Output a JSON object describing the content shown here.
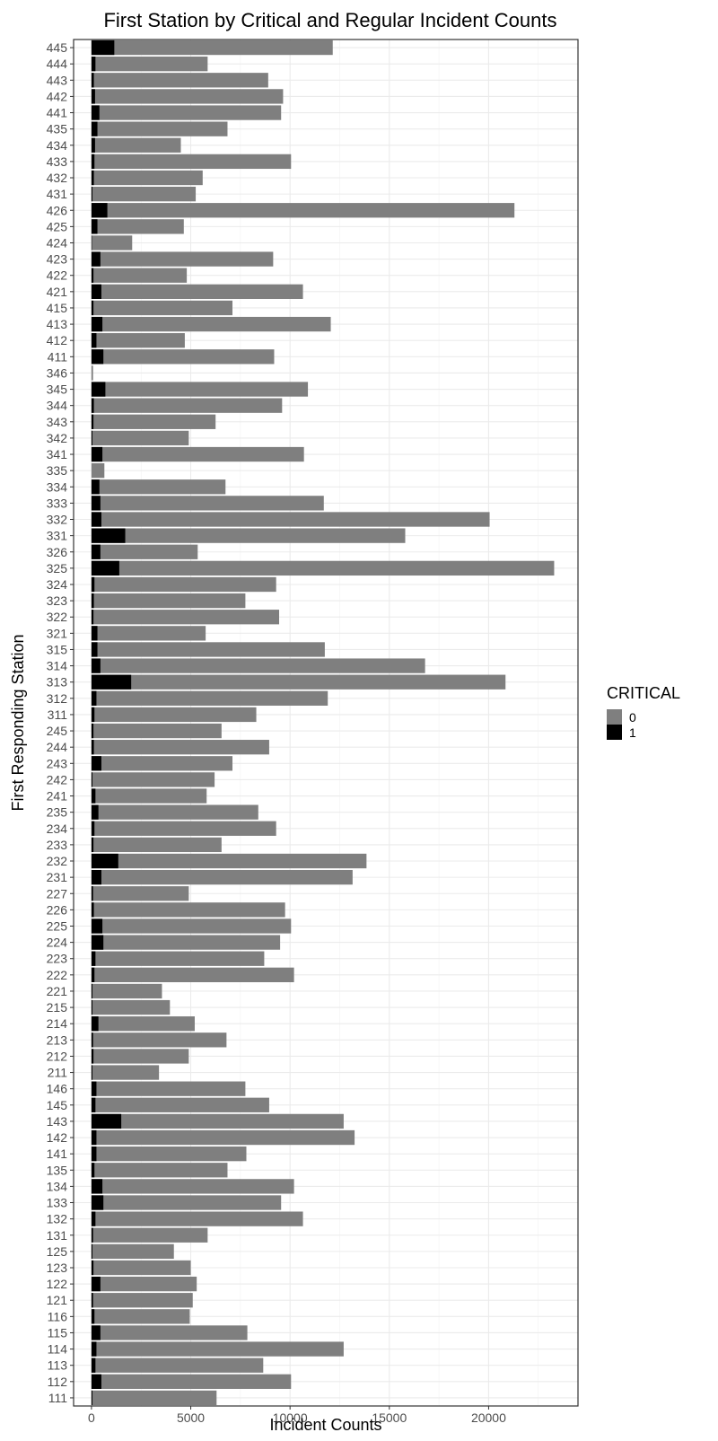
{
  "chart_data": {
    "type": "bar",
    "orientation": "horizontal",
    "stacked": true,
    "title": "First Station by Critical and Regular Incident Counts",
    "xlabel": "Incident Counts",
    "ylabel": "First Responding Station",
    "xlim": [
      -900,
      24500
    ],
    "xticks": [
      0,
      5000,
      10000,
      15000,
      20000
    ],
    "xtick_labels": [
      "0",
      "5000",
      "10000",
      "15000",
      "20000"
    ],
    "grid": true,
    "legend_title": "CRITICAL",
    "legend_position": "right",
    "series": [
      {
        "key": "1",
        "label": "1",
        "color": "#000000"
      },
      {
        "key": "0",
        "label": "0",
        "color": "#7f7f7f"
      }
    ],
    "rows": [
      {
        "station": "445",
        "critical": 1150,
        "total": 12150
      },
      {
        "station": "444",
        "critical": 200,
        "total": 5850
      },
      {
        "station": "443",
        "critical": 120,
        "total": 8900
      },
      {
        "station": "442",
        "critical": 180,
        "total": 9650
      },
      {
        "station": "441",
        "critical": 400,
        "total": 9550
      },
      {
        "station": "435",
        "critical": 300,
        "total": 6850
      },
      {
        "station": "434",
        "critical": 180,
        "total": 4500
      },
      {
        "station": "433",
        "critical": 150,
        "total": 10050
      },
      {
        "station": "432",
        "critical": 120,
        "total": 5600
      },
      {
        "station": "431",
        "critical": 50,
        "total": 5250
      },
      {
        "station": "426",
        "critical": 800,
        "total": 21300
      },
      {
        "station": "425",
        "critical": 300,
        "total": 4650
      },
      {
        "station": "424",
        "critical": 20,
        "total": 2050
      },
      {
        "station": "423",
        "critical": 450,
        "total": 9150
      },
      {
        "station": "422",
        "critical": 100,
        "total": 4800
      },
      {
        "station": "421",
        "critical": 500,
        "total": 10650
      },
      {
        "station": "415",
        "critical": 100,
        "total": 7100
      },
      {
        "station": "413",
        "critical": 550,
        "total": 12050
      },
      {
        "station": "412",
        "critical": 250,
        "total": 4700
      },
      {
        "station": "411",
        "critical": 600,
        "total": 9200
      },
      {
        "station": "346",
        "critical": 0,
        "total": 80
      },
      {
        "station": "345",
        "critical": 700,
        "total": 10900
      },
      {
        "station": "344",
        "critical": 120,
        "total": 9600
      },
      {
        "station": "343",
        "critical": 100,
        "total": 6250
      },
      {
        "station": "342",
        "critical": 50,
        "total": 4900
      },
      {
        "station": "341",
        "critical": 550,
        "total": 10700
      },
      {
        "station": "335",
        "critical": 0,
        "total": 650
      },
      {
        "station": "334",
        "critical": 400,
        "total": 6750
      },
      {
        "station": "333",
        "critical": 450,
        "total": 11700
      },
      {
        "station": "332",
        "critical": 500,
        "total": 20050
      },
      {
        "station": "331",
        "critical": 1700,
        "total": 15800
      },
      {
        "station": "326",
        "critical": 450,
        "total": 5350
      },
      {
        "station": "325",
        "critical": 1400,
        "total": 23300
      },
      {
        "station": "324",
        "critical": 150,
        "total": 9300
      },
      {
        "station": "323",
        "critical": 120,
        "total": 7750
      },
      {
        "station": "322",
        "critical": 100,
        "total": 9450
      },
      {
        "station": "321",
        "critical": 300,
        "total": 5750
      },
      {
        "station": "315",
        "critical": 300,
        "total": 11750
      },
      {
        "station": "314",
        "critical": 450,
        "total": 16800
      },
      {
        "station": "313",
        "critical": 2000,
        "total": 20850
      },
      {
        "station": "312",
        "critical": 250,
        "total": 11900
      },
      {
        "station": "311",
        "critical": 150,
        "total": 8300
      },
      {
        "station": "245",
        "critical": 100,
        "total": 6550
      },
      {
        "station": "244",
        "critical": 120,
        "total": 8950
      },
      {
        "station": "243",
        "critical": 500,
        "total": 7100
      },
      {
        "station": "242",
        "critical": 50,
        "total": 6200
      },
      {
        "station": "241",
        "critical": 200,
        "total": 5800
      },
      {
        "station": "235",
        "critical": 350,
        "total": 8400
      },
      {
        "station": "234",
        "critical": 150,
        "total": 9300
      },
      {
        "station": "233",
        "critical": 100,
        "total": 6550
      },
      {
        "station": "232",
        "critical": 1350,
        "total": 13850
      },
      {
        "station": "231",
        "critical": 500,
        "total": 13150
      },
      {
        "station": "227",
        "critical": 80,
        "total": 4900
      },
      {
        "station": "226",
        "critical": 120,
        "total": 9750
      },
      {
        "station": "225",
        "critical": 550,
        "total": 10050
      },
      {
        "station": "224",
        "critical": 600,
        "total": 9500
      },
      {
        "station": "223",
        "critical": 200,
        "total": 8700
      },
      {
        "station": "222",
        "critical": 150,
        "total": 10200
      },
      {
        "station": "221",
        "critical": 50,
        "total": 3550
      },
      {
        "station": "215",
        "critical": 50,
        "total": 3950
      },
      {
        "station": "214",
        "critical": 350,
        "total": 5200
      },
      {
        "station": "213",
        "critical": 80,
        "total": 6800
      },
      {
        "station": "212",
        "critical": 100,
        "total": 4900
      },
      {
        "station": "211",
        "critical": 50,
        "total": 3400
      },
      {
        "station": "146",
        "critical": 250,
        "total": 7750
      },
      {
        "station": "145",
        "critical": 200,
        "total": 8950
      },
      {
        "station": "143",
        "critical": 1500,
        "total": 12700
      },
      {
        "station": "142",
        "critical": 250,
        "total": 13250
      },
      {
        "station": "141",
        "critical": 250,
        "total": 7800
      },
      {
        "station": "135",
        "critical": 150,
        "total": 6850
      },
      {
        "station": "134",
        "critical": 550,
        "total": 10200
      },
      {
        "station": "133",
        "critical": 600,
        "total": 9550
      },
      {
        "station": "132",
        "critical": 200,
        "total": 10650
      },
      {
        "station": "131",
        "critical": 80,
        "total": 5850
      },
      {
        "station": "125",
        "critical": 50,
        "total": 4150
      },
      {
        "station": "123",
        "critical": 100,
        "total": 5000
      },
      {
        "station": "122",
        "critical": 450,
        "total": 5300
      },
      {
        "station": "121",
        "critical": 80,
        "total": 5100
      },
      {
        "station": "116",
        "critical": 150,
        "total": 4950
      },
      {
        "station": "115",
        "critical": 450,
        "total": 7850
      },
      {
        "station": "114",
        "critical": 250,
        "total": 12700
      },
      {
        "station": "113",
        "critical": 200,
        "total": 8650
      },
      {
        "station": "112",
        "critical": 500,
        "total": 10050
      },
      {
        "station": "111",
        "critical": 50,
        "total": 6300
      }
    ]
  }
}
